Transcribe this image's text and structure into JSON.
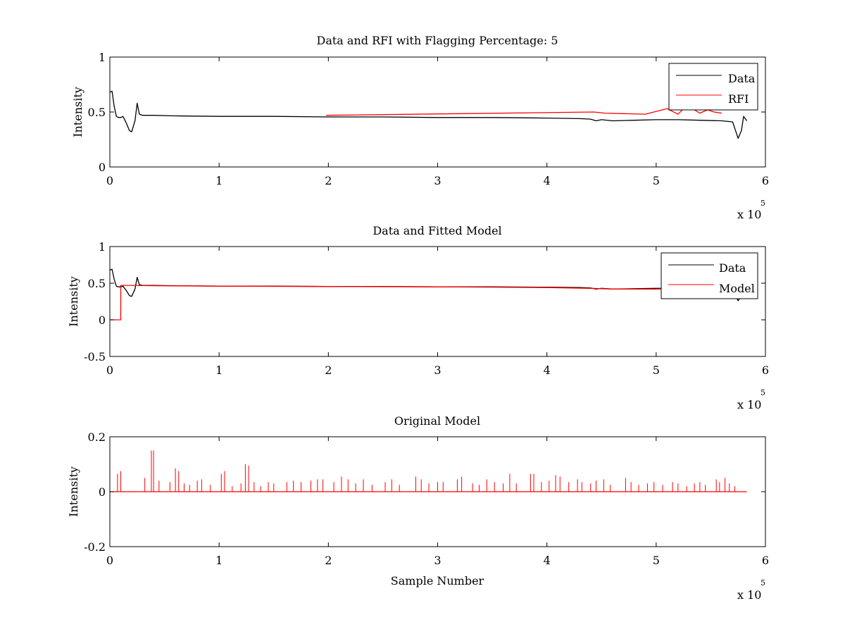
{
  "figure": {
    "background": "#ffffff"
  },
  "chart_data": [
    {
      "type": "line",
      "title": "Data and RFI with Flagging Percentage: 5",
      "xlabel": "",
      "ylabel": "Intensity",
      "xlim": [
        0,
        600000
      ],
      "ylim": [
        0,
        1
      ],
      "xticks": [
        0,
        1,
        2,
        3,
        4,
        5,
        6
      ],
      "yticks": [
        0,
        0.5,
        1
      ],
      "x_multiplier": "x 10",
      "x_exponent": "5",
      "legend": {
        "placement": "top-right",
        "entries": [
          "Data",
          "RFI"
        ]
      },
      "grid": false,
      "series": [
        {
          "name": "Data",
          "color": "#000000",
          "x": [
            0,
            2000,
            4000,
            6000,
            8000,
            10000,
            12000,
            15000,
            18000,
            20000,
            23000,
            25000,
            27000,
            30000,
            40000,
            60000,
            100000,
            150000,
            200000,
            250000,
            300000,
            350000,
            400000,
            430000,
            440000,
            445000,
            450000,
            460000,
            480000,
            500000,
            520000,
            540000,
            560000,
            570000,
            572000,
            575000,
            578000,
            580000,
            583000
          ],
          "y": [
            0.68,
            0.69,
            0.55,
            0.46,
            0.45,
            0.45,
            0.46,
            0.4,
            0.33,
            0.32,
            0.42,
            0.58,
            0.48,
            0.47,
            0.47,
            0.465,
            0.46,
            0.46,
            0.455,
            0.455,
            0.45,
            0.45,
            0.445,
            0.44,
            0.435,
            0.42,
            0.43,
            0.42,
            0.425,
            0.43,
            0.43,
            0.425,
            0.42,
            0.41,
            0.35,
            0.26,
            0.33,
            0.46,
            0.42
          ]
        },
        {
          "name": "RFI",
          "color": "#ff0000",
          "x": [
            198000,
            443000,
            453000,
            490000,
            510000,
            520000,
            524000,
            530000,
            540000,
            547000,
            553000,
            560000
          ],
          "y": [
            0.47,
            0.5,
            0.49,
            0.48,
            0.53,
            0.48,
            0.52,
            0.55,
            0.49,
            0.52,
            0.5,
            0.49
          ]
        }
      ]
    },
    {
      "type": "line",
      "title": "Data and Fitted Model",
      "xlabel": "",
      "ylabel": "Intensity",
      "xlim": [
        0,
        600000
      ],
      "ylim": [
        -0.5,
        1
      ],
      "xticks": [
        0,
        1,
        2,
        3,
        4,
        5,
        6
      ],
      "yticks": [
        -0.5,
        0,
        0.5,
        1
      ],
      "x_multiplier": "x 10",
      "x_exponent": "5",
      "legend": {
        "placement": "top-right",
        "entries": [
          "Data",
          "Model"
        ]
      },
      "grid": false,
      "series": [
        {
          "name": "Data",
          "color": "#000000",
          "x": [
            0,
            2000,
            4000,
            6000,
            8000,
            10000,
            12000,
            15000,
            18000,
            20000,
            23000,
            25000,
            27000,
            30000,
            40000,
            60000,
            100000,
            150000,
            200000,
            250000,
            300000,
            350000,
            400000,
            430000,
            440000,
            445000,
            450000,
            460000,
            480000,
            500000,
            520000,
            540000,
            560000,
            570000,
            572000,
            575000,
            578000
          ],
          "y": [
            0.68,
            0.69,
            0.55,
            0.46,
            0.45,
            0.45,
            0.46,
            0.4,
            0.33,
            0.32,
            0.42,
            0.58,
            0.48,
            0.47,
            0.47,
            0.465,
            0.46,
            0.46,
            0.455,
            0.455,
            0.45,
            0.45,
            0.445,
            0.44,
            0.435,
            0.42,
            0.43,
            0.42,
            0.425,
            0.43,
            0.43,
            0.425,
            0.42,
            0.41,
            0.35,
            0.26,
            0.33
          ]
        },
        {
          "name": "Model",
          "color": "#ff0000",
          "x": [
            0,
            10000,
            10000,
            20000,
            40000,
            100000,
            200000,
            300000,
            400000,
            440000,
            460000,
            500000,
            520000
          ],
          "y": [
            0,
            0,
            0.47,
            0.47,
            0.465,
            0.46,
            0.455,
            0.45,
            0.44,
            0.43,
            0.42,
            0.42,
            0.43
          ]
        }
      ]
    },
    {
      "type": "line",
      "title": "Original Model",
      "xlabel": "Sample Number",
      "ylabel": "Intensity",
      "xlim": [
        0,
        600000
      ],
      "ylim": [
        -0.2,
        0.2
      ],
      "xticks": [
        0,
        1,
        2,
        3,
        4,
        5,
        6
      ],
      "yticks": [
        -0.2,
        0,
        0.2
      ],
      "x_multiplier": "x 10",
      "x_exponent": "5",
      "legend": null,
      "grid": false,
      "series": [
        {
          "color": "#ff0000",
          "baseline_x": [
            0,
            583000
          ],
          "baseline_y": 0,
          "spikes": [
            [
              7000,
              0.065
            ],
            [
              10000,
              0.075
            ],
            [
              32000,
              0.05
            ],
            [
              38000,
              0.15
            ],
            [
              40000,
              0.15
            ],
            [
              45000,
              0.04
            ],
            [
              55000,
              0.035
            ],
            [
              60000,
              0.085
            ],
            [
              63000,
              0.075
            ],
            [
              68000,
              0.03
            ],
            [
              73000,
              0.025
            ],
            [
              80000,
              0.04
            ],
            [
              84000,
              0.045
            ],
            [
              92000,
              0.025
            ],
            [
              102000,
              0.065
            ],
            [
              105000,
              0.075
            ],
            [
              112000,
              0.02
            ],
            [
              120000,
              0.03
            ],
            [
              124000,
              0.1
            ],
            [
              127000,
              0.095
            ],
            [
              132000,
              0.035
            ],
            [
              138000,
              0.02
            ],
            [
              145000,
              0.035
            ],
            [
              150000,
              0.03
            ],
            [
              162000,
              0.035
            ],
            [
              168000,
              0.04
            ],
            [
              175000,
              0.035
            ],
            [
              184000,
              0.04
            ],
            [
              190000,
              0.045
            ],
            [
              195000,
              0.045
            ],
            [
              205000,
              0.035
            ],
            [
              212000,
              0.055
            ],
            [
              218000,
              0.045
            ],
            [
              225000,
              0.03
            ],
            [
              232000,
              0.045
            ],
            [
              240000,
              0.025
            ],
            [
              252000,
              0.035
            ],
            [
              258000,
              0.045
            ],
            [
              265000,
              0.025
            ],
            [
              280000,
              0.055
            ],
            [
              285000,
              0.045
            ],
            [
              292000,
              0.03
            ],
            [
              300000,
              0.035
            ],
            [
              305000,
              0.035
            ],
            [
              318000,
              0.045
            ],
            [
              322000,
              0.055
            ],
            [
              332000,
              0.03
            ],
            [
              338000,
              0.025
            ],
            [
              345000,
              0.045
            ],
            [
              352000,
              0.035
            ],
            [
              360000,
              0.03
            ],
            [
              366000,
              0.065
            ],
            [
              372000,
              0.03
            ],
            [
              385000,
              0.065
            ],
            [
              388000,
              0.065
            ],
            [
              395000,
              0.035
            ],
            [
              402000,
              0.04
            ],
            [
              408000,
              0.06
            ],
            [
              412000,
              0.055
            ],
            [
              420000,
              0.035
            ],
            [
              428000,
              0.045
            ],
            [
              432000,
              0.035
            ],
            [
              440000,
              0.03
            ],
            [
              445000,
              0.04
            ],
            [
              452000,
              0.045
            ],
            [
              458000,
              0.025
            ],
            [
              472000,
              0.05
            ],
            [
              477000,
              0.035
            ],
            [
              484000,
              0.025
            ],
            [
              492000,
              0.03
            ],
            [
              498000,
              0.035
            ],
            [
              506000,
              0.025
            ],
            [
              515000,
              0.035
            ],
            [
              520000,
              0.03
            ],
            [
              528000,
              0.02
            ],
            [
              535000,
              0.03
            ],
            [
              540000,
              0.035
            ],
            [
              545000,
              0.025
            ],
            [
              555000,
              0.045
            ],
            [
              558000,
              0.035
            ],
            [
              563000,
              0.05
            ],
            [
              567000,
              0.03
            ],
            [
              572000,
              0.02
            ]
          ]
        }
      ]
    }
  ]
}
